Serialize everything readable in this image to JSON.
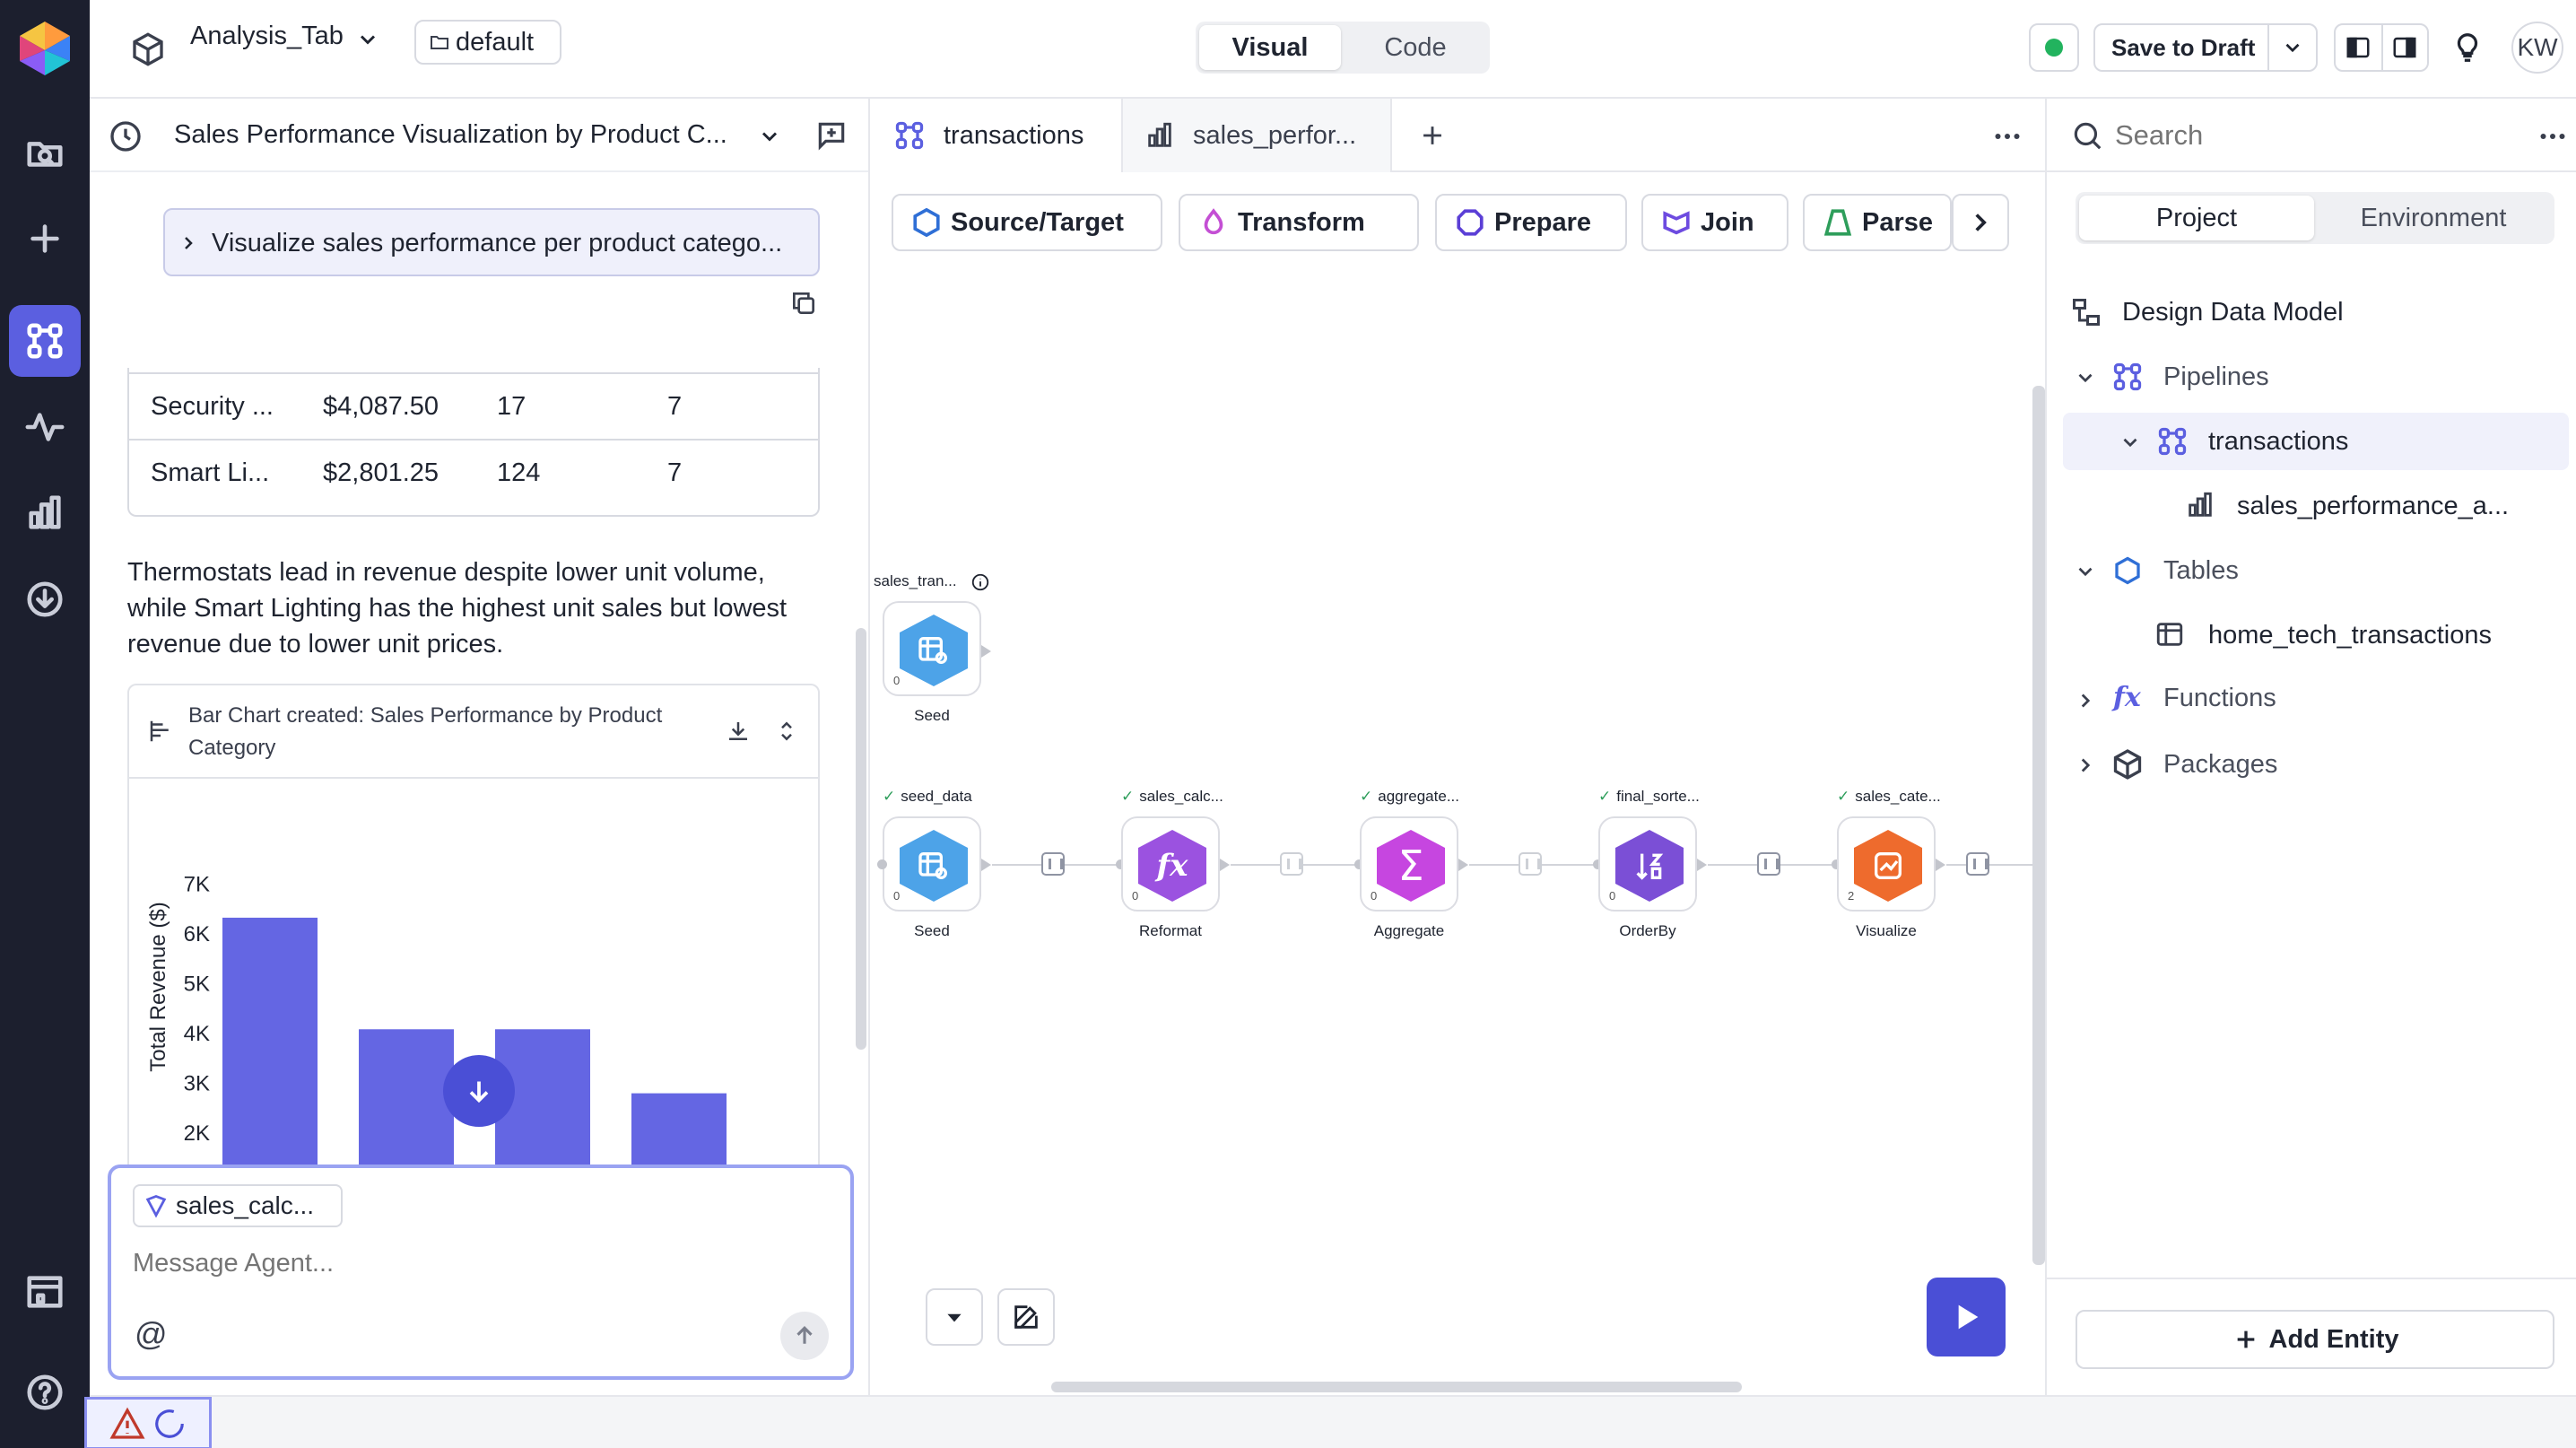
{
  "app": {
    "tab_name": "Analysis_Tab",
    "branch": "default",
    "modes": [
      "Visual",
      "Code"
    ],
    "active_mode": "Visual",
    "save_label": "Save to Draft",
    "user_initials": "KW",
    "status_color": "#22b35e",
    "accent": "#5b5fe0"
  },
  "rail": {
    "icons": [
      "logo-icon",
      "project-browser-icon",
      "plus-icon",
      "pipelines-icon",
      "monitoring-icon",
      "charts-icon",
      "download-icon",
      "app-store-icon",
      "help-icon"
    ]
  },
  "chat": {
    "title": "Sales Performance Visualization by Product C...",
    "prompt_bubble": "Visualize sales performance per product catego...",
    "table_rows": [
      [
        "Security ...",
        "$4,087.50",
        "17",
        "7"
      ],
      [
        "Smart Li...",
        "$2,801.25",
        "124",
        "7"
      ]
    ],
    "summary": "Thermostats lead in revenue despite lower unit volume, while Smart Lighting has the highest unit sales but lowest revenue due to lower unit prices.",
    "chart_card_title": "Bar Chart created: Sales Performance by Product Category",
    "context_chip": "sales_calc...",
    "input_placeholder": "Message Agent...",
    "at_symbol": "@"
  },
  "chart_data": {
    "type": "bar",
    "categories": [
      "",
      "",
      "",
      ""
    ],
    "values": [
      6330,
      4087.5,
      4087.5,
      2801.25
    ],
    "ylabel": "Total Revenue ($)",
    "yticks": [
      "7K",
      "6K",
      "5K",
      "4K",
      "3K",
      "2K",
      "1K",
      "0"
    ],
    "ylim": [
      0,
      7500
    ],
    "bar_color": "#6466e3"
  },
  "canvas": {
    "tabs": [
      {
        "label": "transactions",
        "icon": "pipelines-icon"
      },
      {
        "label": "sales_perfor...",
        "icon": "chart-icon"
      }
    ],
    "tools": [
      "Source/Target",
      "Transform",
      "Prepare",
      "Join",
      "Parse"
    ],
    "seed_top": {
      "label": "sales_tran...",
      "caption": "Seed",
      "count": "0"
    },
    "nodes": [
      {
        "label": "seed_data",
        "caption": "Seed",
        "count": "0"
      },
      {
        "label": "sales_calc...",
        "caption": "Reformat",
        "count": "0"
      },
      {
        "label": "aggregate...",
        "caption": "Aggregate",
        "count": "0"
      },
      {
        "label": "final_sorte...",
        "caption": "OrderBy",
        "count": "0"
      },
      {
        "label": "sales_cate...",
        "caption": "Visualize",
        "count": "2"
      }
    ]
  },
  "right": {
    "search_placeholder": "Search",
    "tabs": [
      "Project",
      "Environment"
    ],
    "design_model": "Design Data Model",
    "pipelines": "Pipelines",
    "pipeline_item": "transactions",
    "pipeline_child": "sales_performance_a...",
    "tables": "Tables",
    "table_item": "home_tech_transactions",
    "functions": "Functions",
    "packages": "Packages",
    "add_entity": "Add Entity"
  }
}
